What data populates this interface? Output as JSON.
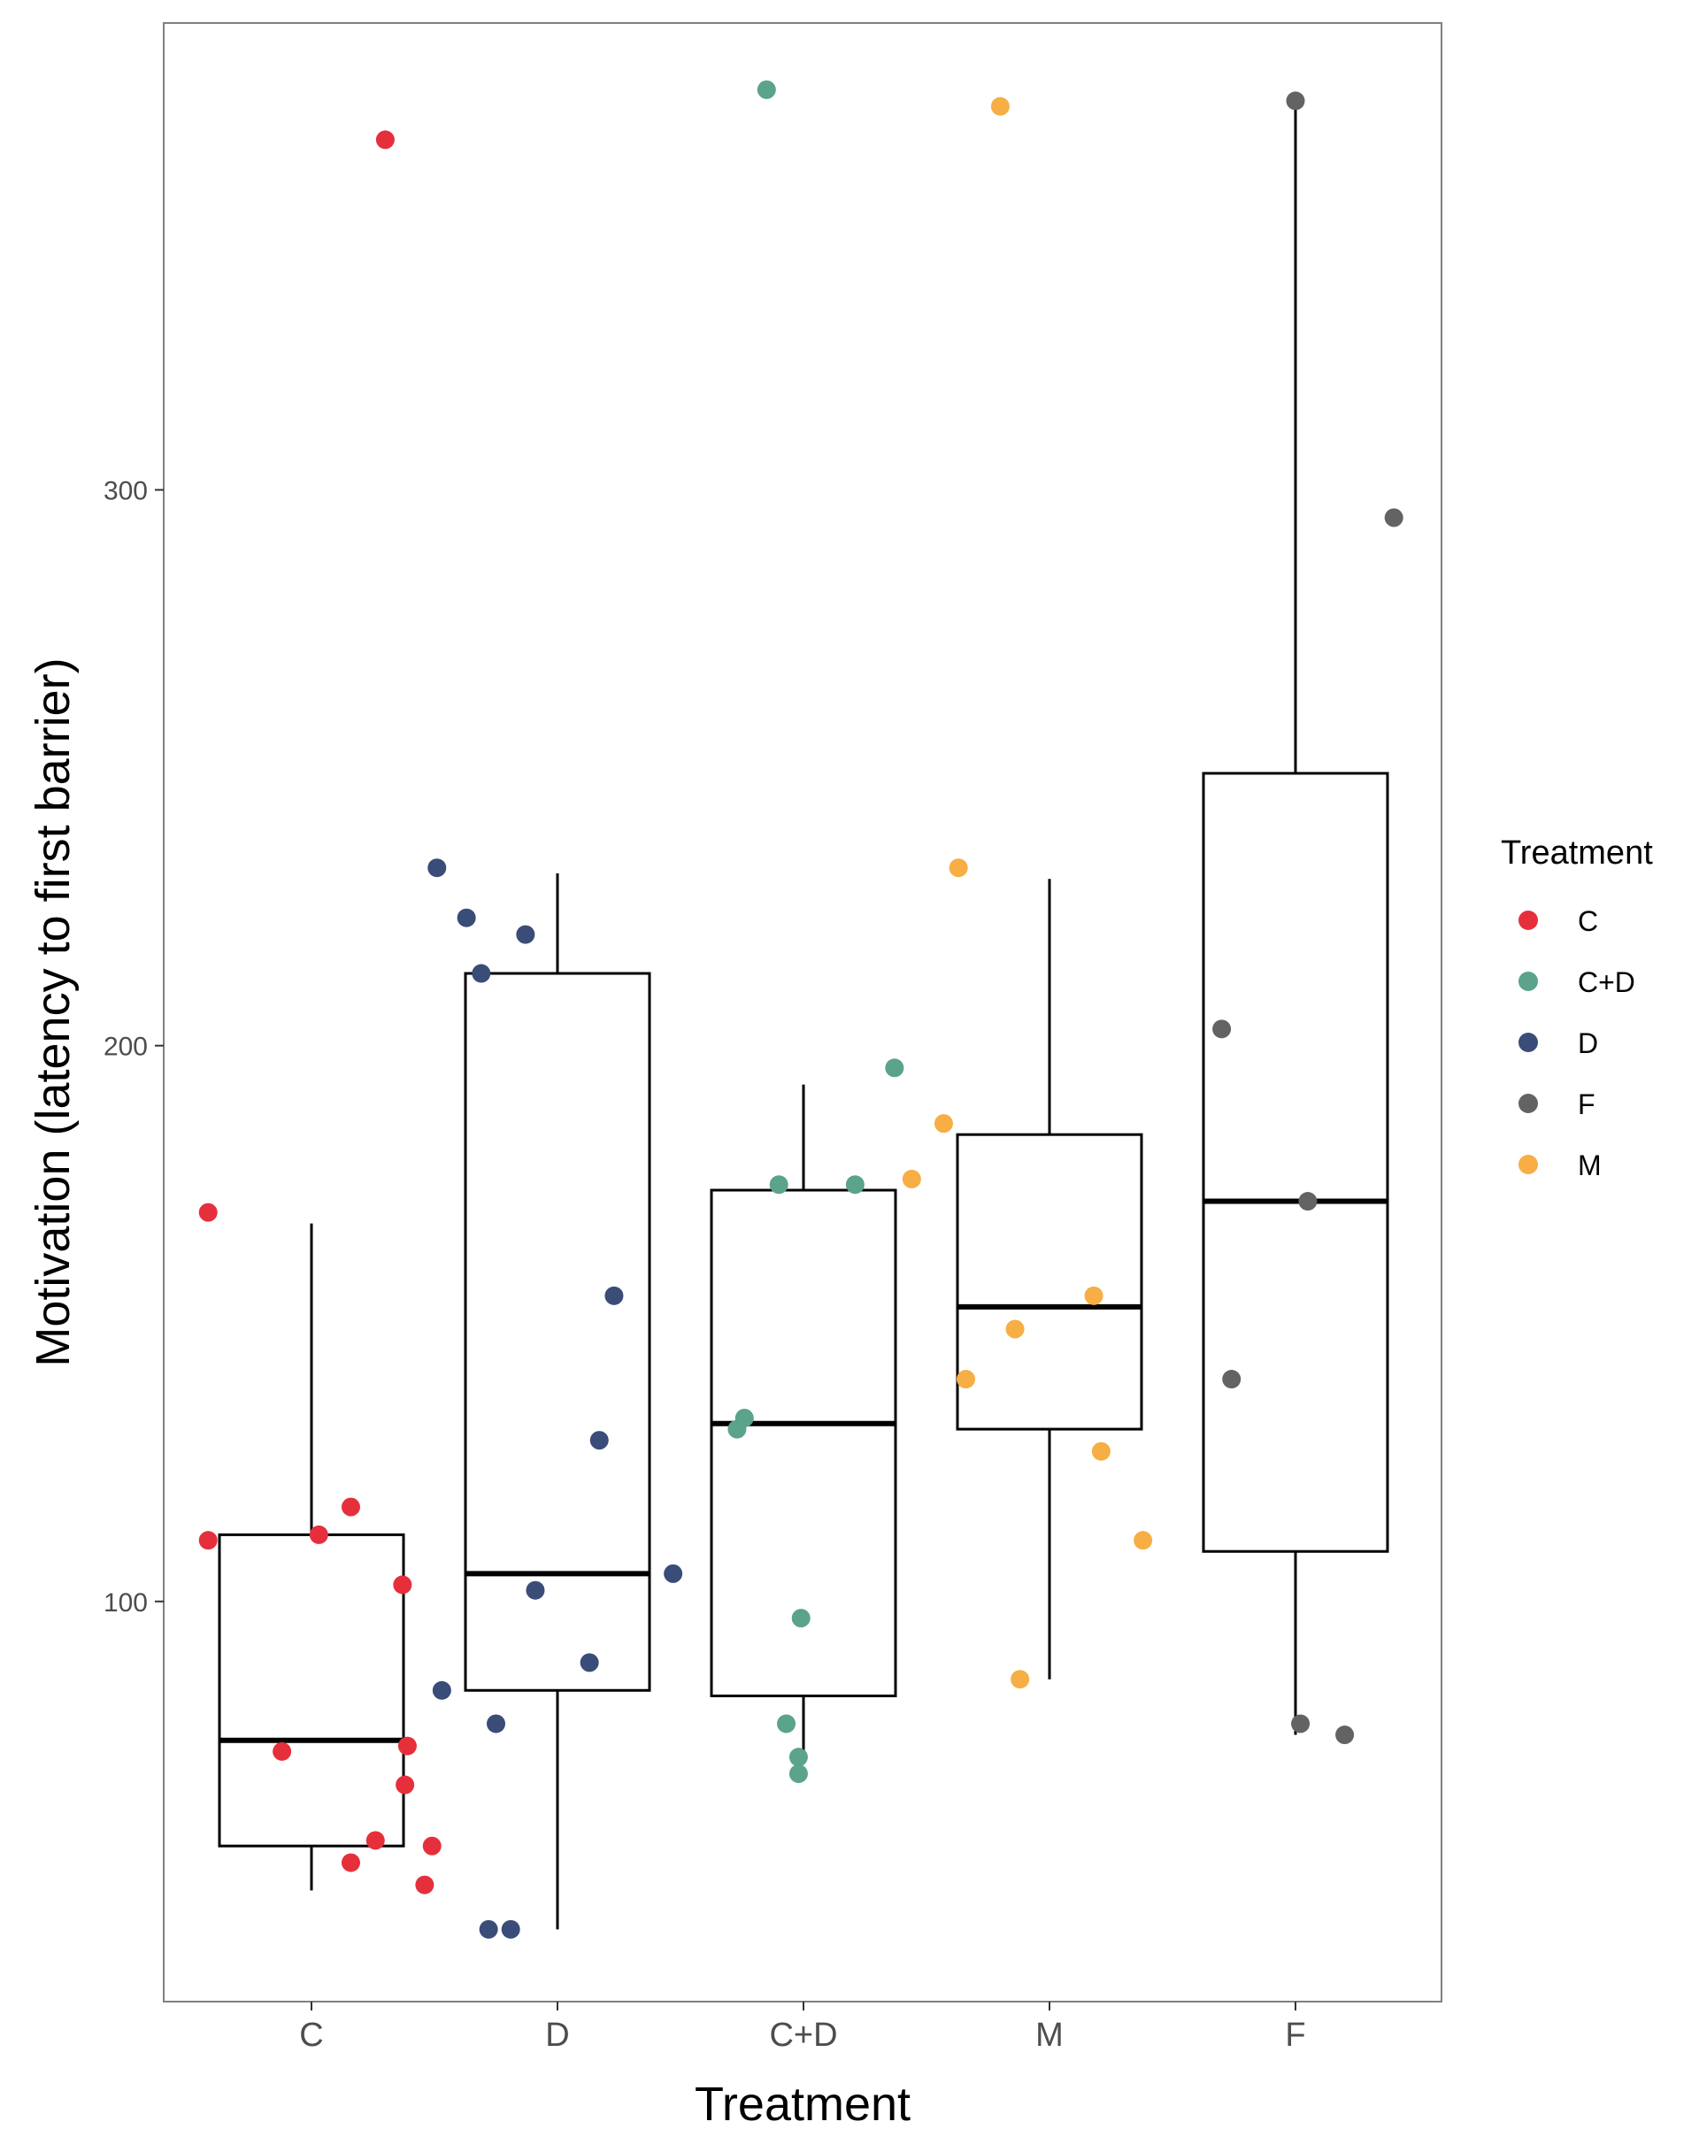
{
  "chart_data": {
    "type": "boxplot-jitter",
    "title": "",
    "xlabel": "Treatment",
    "ylabel": "Motivation (latency to first barrier)",
    "ylim": [
      28,
      384
    ],
    "yticks": [
      100,
      200,
      300
    ],
    "grid": false,
    "categories": [
      "C",
      "D",
      "C+D",
      "M",
      "F"
    ],
    "boxes": [
      {
        "category": "C",
        "whisker_low": 48,
        "q1": 56,
        "median": 75,
        "q3": 112,
        "whisker_high": 168
      },
      {
        "category": "D",
        "whisker_low": 41,
        "q1": 84,
        "median": 105,
        "q3": 213,
        "whisker_high": 231
      },
      {
        "category": "C+D",
        "whisker_low": 71,
        "q1": 83,
        "median": 132,
        "q3": 174,
        "whisker_high": 193
      },
      {
        "category": "M",
        "whisker_low": 86,
        "q1": 131,
        "median": 153,
        "q3": 184,
        "whisker_high": 230
      },
      {
        "category": "F",
        "whisker_low": 76,
        "q1": 109,
        "median": 172,
        "q3": 249,
        "whisker_high": 370
      }
    ],
    "points": [
      {
        "treatment": "C",
        "x": 0.58,
        "y": 170
      },
      {
        "treatment": "C",
        "x": 0.58,
        "y": 111
      },
      {
        "treatment": "C",
        "x": 1.3,
        "y": 363
      },
      {
        "treatment": "C",
        "x": 1.03,
        "y": 112
      },
      {
        "treatment": "C",
        "x": 1.16,
        "y": 117
      },
      {
        "treatment": "C",
        "x": 1.37,
        "y": 103
      },
      {
        "treatment": "C",
        "x": 0.88,
        "y": 73
      },
      {
        "treatment": "C",
        "x": 1.39,
        "y": 74
      },
      {
        "treatment": "C",
        "x": 1.38,
        "y": 67
      },
      {
        "treatment": "C",
        "x": 1.26,
        "y": 57
      },
      {
        "treatment": "C",
        "x": 1.49,
        "y": 56
      },
      {
        "treatment": "C",
        "x": 1.16,
        "y": 53
      },
      {
        "treatment": "C",
        "x": 1.46,
        "y": 49
      },
      {
        "treatment": "D",
        "x": 1.51,
        "y": 232
      },
      {
        "treatment": "D",
        "x": 1.63,
        "y": 223
      },
      {
        "treatment": "D",
        "x": 1.87,
        "y": 220
      },
      {
        "treatment": "D",
        "x": 1.69,
        "y": 213
      },
      {
        "treatment": "D",
        "x": 2.23,
        "y": 155
      },
      {
        "treatment": "D",
        "x": 2.17,
        "y": 129
      },
      {
        "treatment": "D",
        "x": 2.47,
        "y": 105
      },
      {
        "treatment": "D",
        "x": 1.91,
        "y": 102
      },
      {
        "treatment": "D",
        "x": 2.13,
        "y": 89
      },
      {
        "treatment": "D",
        "x": 1.53,
        "y": 84
      },
      {
        "treatment": "D",
        "x": 1.75,
        "y": 78
      },
      {
        "treatment": "D",
        "x": 1.72,
        "y": 41
      },
      {
        "treatment": "D",
        "x": 1.81,
        "y": 41
      },
      {
        "treatment": "C+D",
        "x": 2.85,
        "y": 372
      },
      {
        "treatment": "C+D",
        "x": 3.37,
        "y": 196
      },
      {
        "treatment": "C+D",
        "x": 2.9,
        "y": 175
      },
      {
        "treatment": "C+D",
        "x": 3.21,
        "y": 175
      },
      {
        "treatment": "C+D",
        "x": 2.76,
        "y": 133
      },
      {
        "treatment": "C+D",
        "x": 2.73,
        "y": 131
      },
      {
        "treatment": "C+D",
        "x": 2.99,
        "y": 97
      },
      {
        "treatment": "C+D",
        "x": 2.93,
        "y": 78
      },
      {
        "treatment": "C+D",
        "x": 2.98,
        "y": 72
      },
      {
        "treatment": "C+D",
        "x": 2.98,
        "y": 69
      },
      {
        "treatment": "M",
        "x": 3.8,
        "y": 369
      },
      {
        "treatment": "M",
        "x": 3.63,
        "y": 232
      },
      {
        "treatment": "M",
        "x": 3.57,
        "y": 186
      },
      {
        "treatment": "M",
        "x": 3.44,
        "y": 176
      },
      {
        "treatment": "M",
        "x": 4.18,
        "y": 155
      },
      {
        "treatment": "M",
        "x": 3.86,
        "y": 149
      },
      {
        "treatment": "M",
        "x": 3.66,
        "y": 140
      },
      {
        "treatment": "M",
        "x": 4.21,
        "y": 127
      },
      {
        "treatment": "M",
        "x": 4.38,
        "y": 111
      },
      {
        "treatment": "M",
        "x": 3.88,
        "y": 86
      },
      {
        "treatment": "F",
        "x": 5.0,
        "y": 370
      },
      {
        "treatment": "F",
        "x": 5.4,
        "y": 295
      },
      {
        "treatment": "F",
        "x": 4.7,
        "y": 203
      },
      {
        "treatment": "F",
        "x": 5.05,
        "y": 172
      },
      {
        "treatment": "F",
        "x": 4.74,
        "y": 140
      },
      {
        "treatment": "F",
        "x": 5.02,
        "y": 78
      },
      {
        "treatment": "F",
        "x": 5.2,
        "y": 76
      }
    ],
    "legend": {
      "title": "Treatment",
      "position": "right",
      "entries": [
        {
          "label": "C",
          "color": "#E5303C"
        },
        {
          "label": "C+D",
          "color": "#5BA38A"
        },
        {
          "label": "D",
          "color": "#3A4C78"
        },
        {
          "label": "F",
          "color": "#636363"
        },
        {
          "label": "M",
          "color": "#F6AE45"
        }
      ]
    }
  }
}
